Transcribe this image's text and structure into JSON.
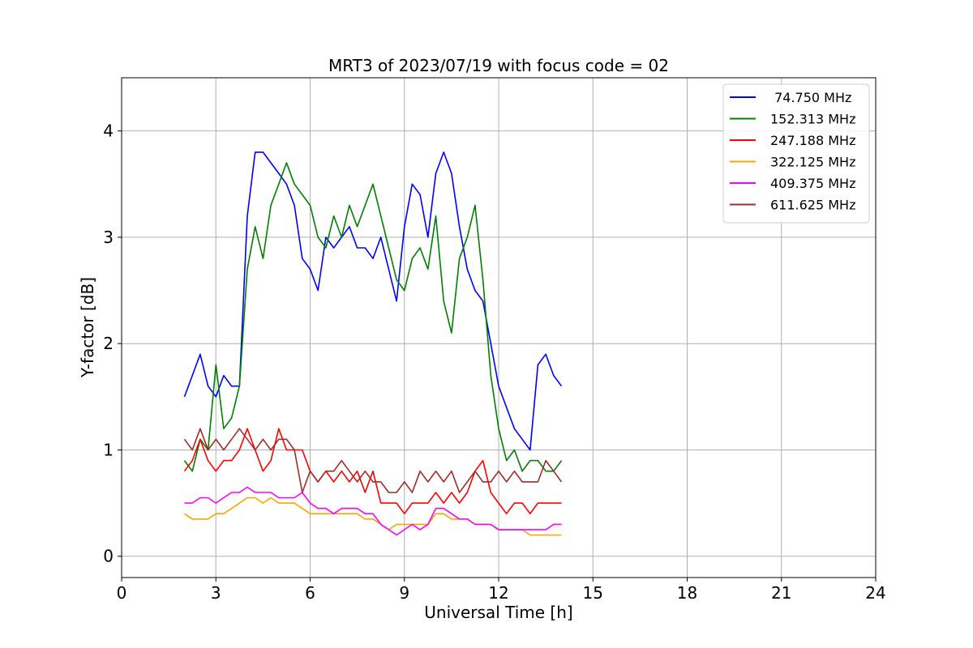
{
  "chart_data": {
    "type": "line",
    "title": "MRT3 of 2023/07/19 with focus code = 02",
    "xlabel": "Universal Time [h]",
    "ylabel": "Y-factor [dB]",
    "xlim": [
      0,
      24
    ],
    "ylim": [
      -0.2,
      4.5
    ],
    "xticks": [
      "0",
      "3",
      "6",
      "9",
      "12",
      "15",
      "18",
      "21",
      "24"
    ],
    "yticks": [
      "0",
      "1",
      "2",
      "3",
      "4"
    ],
    "grid": true,
    "legend_position": "upper right",
    "x_sample_hours": [
      2.0,
      2.25,
      2.5,
      2.75,
      3.0,
      3.25,
      3.5,
      3.75,
      4.0,
      4.25,
      4.5,
      4.75,
      5.0,
      5.25,
      5.5,
      5.75,
      6.0,
      6.25,
      6.5,
      6.75,
      7.0,
      7.25,
      7.5,
      7.75,
      8.0,
      8.25,
      8.5,
      8.75,
      9.0,
      9.25,
      9.5,
      9.75,
      10.0,
      10.25,
      10.5,
      10.75,
      11.0,
      11.25,
      11.5,
      11.75,
      12.0,
      12.25,
      12.5,
      12.75,
      13.0,
      13.25,
      13.5,
      13.75,
      14.0
    ],
    "series": [
      {
        "name": " 74.750 MHz",
        "color": "#0000ff",
        "values": [
          1.5,
          1.7,
          1.9,
          1.6,
          1.5,
          1.7,
          1.6,
          1.6,
          3.2,
          3.8,
          3.8,
          3.7,
          3.6,
          3.5,
          3.3,
          2.8,
          2.7,
          2.5,
          3.0,
          2.9,
          3.0,
          3.1,
          2.9,
          2.9,
          2.8,
          3.0,
          2.7,
          2.4,
          3.1,
          3.5,
          3.4,
          3.0,
          3.6,
          3.8,
          3.6,
          3.1,
          2.7,
          2.5,
          2.4,
          2.0,
          1.6,
          1.4,
          1.2,
          1.1,
          1.0,
          1.8,
          1.9,
          1.7,
          1.6
        ]
      },
      {
        "name": "152.313 MHz",
        "color": "#008000",
        "values": [
          0.9,
          0.8,
          1.1,
          1.0,
          1.8,
          1.2,
          1.3,
          1.6,
          2.7,
          3.1,
          2.8,
          3.3,
          3.5,
          3.7,
          3.5,
          3.4,
          3.3,
          3.0,
          2.9,
          3.2,
          3.0,
          3.3,
          3.1,
          3.3,
          3.5,
          3.2,
          2.9,
          2.6,
          2.5,
          2.8,
          2.9,
          2.7,
          3.2,
          2.4,
          2.1,
          2.8,
          3.0,
          3.3,
          2.6,
          1.7,
          1.2,
          0.9,
          1.0,
          0.8,
          0.9,
          0.9,
          0.8,
          0.8,
          0.9
        ]
      },
      {
        "name": "247.188 MHz",
        "color": "#ff0000",
        "values": [
          0.8,
          0.9,
          1.1,
          0.9,
          0.8,
          0.9,
          0.9,
          1.0,
          1.2,
          1.0,
          0.8,
          0.9,
          1.2,
          1.0,
          1.0,
          1.0,
          0.8,
          0.7,
          0.8,
          0.7,
          0.8,
          0.7,
          0.8,
          0.6,
          0.8,
          0.5,
          0.5,
          0.5,
          0.4,
          0.5,
          0.5,
          0.5,
          0.6,
          0.5,
          0.6,
          0.5,
          0.6,
          0.8,
          0.9,
          0.6,
          0.5,
          0.4,
          0.5,
          0.5,
          0.4,
          0.5,
          0.5,
          0.5,
          0.5
        ]
      },
      {
        "name": "322.125 MHz",
        "color": "#ffa500",
        "values": [
          0.4,
          0.35,
          0.35,
          0.35,
          0.4,
          0.4,
          0.45,
          0.5,
          0.55,
          0.55,
          0.5,
          0.55,
          0.5,
          0.5,
          0.5,
          0.45,
          0.4,
          0.4,
          0.4,
          0.4,
          0.4,
          0.4,
          0.4,
          0.35,
          0.35,
          0.3,
          0.25,
          0.3,
          0.3,
          0.3,
          0.3,
          0.3,
          0.4,
          0.4,
          0.35,
          0.35,
          0.35,
          0.3,
          0.3,
          0.3,
          0.25,
          0.25,
          0.25,
          0.25,
          0.2,
          0.2,
          0.2,
          0.2,
          0.2
        ]
      },
      {
        "name": "409.375 MHz",
        "color": "#ff00ff",
        "values": [
          0.5,
          0.5,
          0.55,
          0.55,
          0.5,
          0.55,
          0.6,
          0.6,
          0.65,
          0.6,
          0.6,
          0.6,
          0.55,
          0.55,
          0.55,
          0.6,
          0.5,
          0.45,
          0.45,
          0.4,
          0.45,
          0.45,
          0.45,
          0.4,
          0.4,
          0.3,
          0.25,
          0.2,
          0.25,
          0.3,
          0.25,
          0.3,
          0.45,
          0.45,
          0.4,
          0.35,
          0.35,
          0.3,
          0.3,
          0.3,
          0.25,
          0.25,
          0.25,
          0.25,
          0.25,
          0.25,
          0.25,
          0.3,
          0.3
        ]
      },
      {
        "name": "611.625 MHz",
        "color": "#a52a2a",
        "values": [
          1.1,
          1.0,
          1.2,
          1.0,
          1.1,
          1.0,
          1.1,
          1.2,
          1.1,
          1.0,
          1.1,
          1.0,
          1.1,
          1.1,
          1.0,
          0.6,
          0.8,
          0.7,
          0.8,
          0.8,
          0.9,
          0.8,
          0.7,
          0.8,
          0.7,
          0.7,
          0.6,
          0.6,
          0.7,
          0.6,
          0.8,
          0.7,
          0.8,
          0.7,
          0.8,
          0.6,
          0.7,
          0.8,
          0.7,
          0.7,
          0.8,
          0.7,
          0.8,
          0.7,
          0.7,
          0.7,
          0.9,
          0.8,
          0.7
        ]
      }
    ]
  }
}
